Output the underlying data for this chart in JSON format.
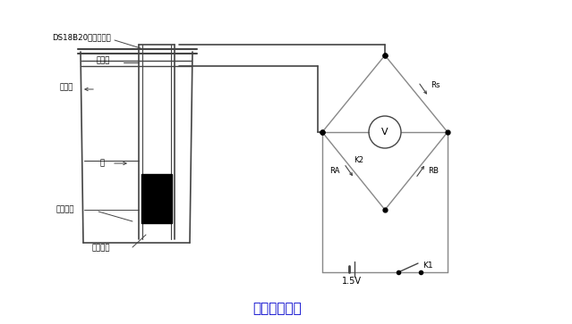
{
  "title": "实验装置简图",
  "title_fontsize": 11,
  "title_color": "#0000cc",
  "bg_color": "#ffffff",
  "line_color": "#888888",
  "dark_color": "#444444",
  "font_size": 6.5,
  "labels": {
    "ds18b20": "DS18B20温度传感器",
    "glass_tube": "玻璃管",
    "thermos": "保温杯",
    "water": "水",
    "transformer_oil": "变压器油",
    "thermistor": "热敏电阻",
    "voltage": "1.5V",
    "Rs": "Rs",
    "RA": "RA",
    "RB": "RB",
    "K2": "K2",
    "K1": "K1",
    "V": "V"
  }
}
